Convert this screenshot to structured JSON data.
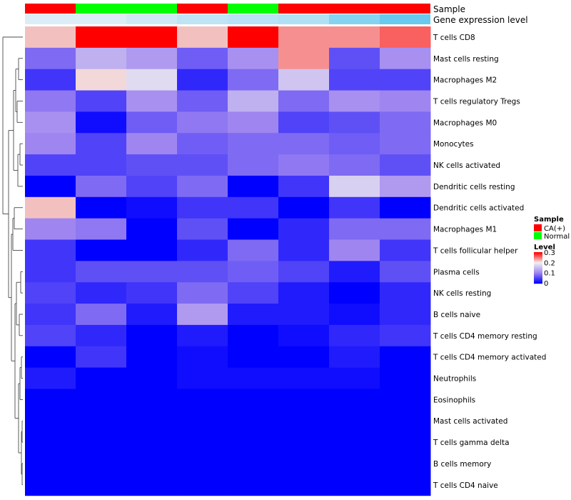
{
  "chart_data": {
    "type": "heatmap",
    "annotation_rows": [
      "Sample",
      "Gene expression level"
    ],
    "samples": {
      "Sample": [
        "CA(+)",
        "Normal",
        "Normal",
        "CA(+)",
        "Normal",
        "CA(+)",
        "CA(+)",
        "CA(+)"
      ],
      "Gene expression level": [
        0.1,
        0.1,
        0.2,
        0.3,
        0.35,
        0.4,
        0.7,
        0.9
      ]
    },
    "rows": [
      "T cells CD8",
      "Mast cells resting",
      "Macrophages M2",
      "T cells regulatory  Tregs",
      "Macrophages M0",
      "Monocytes",
      "NK cells activated",
      "Dendritic cells resting",
      "Dendritic cells activated",
      "Macrophages M1",
      "T cells follicular helper",
      "Plasma cells",
      "NK cells resting",
      "B cells naive",
      "T cells CD4 memory resting",
      "T cells CD4 memory activated",
      "Neutrophils",
      "Eosinophils",
      "Mast cells activated",
      "T cells gamma delta",
      "B cells memory",
      "T cells CD4 naive"
    ],
    "values": [
      [
        0.22,
        0.3,
        0.3,
        0.22,
        0.3,
        0.24,
        0.24,
        0.26
      ],
      [
        0.08,
        0.14,
        0.12,
        0.07,
        0.11,
        0.24,
        0.06,
        0.11
      ],
      [
        0.04,
        0.21,
        0.18,
        0.03,
        0.08,
        0.16,
        0.05,
        0.05
      ],
      [
        0.09,
        0.05,
        0.11,
        0.07,
        0.14,
        0.08,
        0.11,
        0.1
      ],
      [
        0.11,
        0.01,
        0.07,
        0.09,
        0.1,
        0.05,
        0.06,
        0.08
      ],
      [
        0.1,
        0.05,
        0.1,
        0.07,
        0.08,
        0.08,
        0.07,
        0.08
      ],
      [
        0.05,
        0.05,
        0.06,
        0.06,
        0.08,
        0.09,
        0.08,
        0.06
      ],
      [
        0.0,
        0.08,
        0.05,
        0.08,
        0.0,
        0.04,
        0.17,
        0.12
      ],
      [
        0.22,
        0.0,
        0.01,
        0.04,
        0.04,
        0.0,
        0.04,
        0.0
      ],
      [
        0.1,
        0.09,
        0.0,
        0.06,
        0.0,
        0.03,
        0.08,
        0.08
      ],
      [
        0.04,
        0.0,
        0.0,
        0.03,
        0.08,
        0.03,
        0.1,
        0.04
      ],
      [
        0.04,
        0.06,
        0.06,
        0.06,
        0.07,
        0.05,
        0.02,
        0.06
      ],
      [
        0.05,
        0.03,
        0.04,
        0.08,
        0.05,
        0.02,
        0.0,
        0.03
      ],
      [
        0.04,
        0.08,
        0.02,
        0.12,
        0.02,
        0.02,
        0.01,
        0.03
      ],
      [
        0.05,
        0.03,
        0.0,
        0.02,
        0.0,
        0.01,
        0.03,
        0.04
      ],
      [
        0.0,
        0.04,
        0.0,
        0.01,
        0.0,
        0.0,
        0.02,
        0.0
      ],
      [
        0.02,
        0.0,
        0.0,
        0.01,
        0.01,
        0.01,
        0.01,
        0.0
      ],
      [
        0.0,
        0.0,
        0.0,
        0.0,
        0.0,
        0.0,
        0.0,
        0.0
      ],
      [
        0.0,
        0.0,
        0.0,
        0.0,
        0.0,
        0.0,
        0.0,
        0.0
      ],
      [
        0.0,
        0.0,
        0.0,
        0.0,
        0.0,
        0.0,
        0.0,
        0.0
      ],
      [
        0.0,
        0.0,
        0.0,
        0.0,
        0.0,
        0.0,
        0.0,
        0.0
      ],
      [
        0.0,
        0.0,
        0.0,
        0.0,
        0.0,
        0.0,
        0.0,
        0.0
      ]
    ],
    "color_scale": {
      "stops": [
        0,
        0.1,
        0.2,
        0.3
      ],
      "colors": [
        "#0000ff",
        "#9f85f0",
        "#f0f0f0",
        "#ff0000"
      ],
      "min": 0,
      "max": 0.3
    },
    "legend": {
      "sample_title": "Sample",
      "sample_entries": [
        {
          "label": "CA(+)",
          "color": "#ff0000"
        },
        {
          "label": "Normal",
          "color": "#00ff00"
        }
      ],
      "level_title": "Level",
      "level_ticks": [
        {
          "label": "0.3",
          "value": 0.3
        },
        {
          "label": "0.2",
          "value": 0.2
        },
        {
          "label": "0.1",
          "value": 0.1
        },
        {
          "label": "0",
          "value": 0
        }
      ],
      "placement": "right"
    },
    "dendrogram": "row",
    "expression_palette": [
      "#eaf2f8",
      "#5bc4ee"
    ]
  }
}
